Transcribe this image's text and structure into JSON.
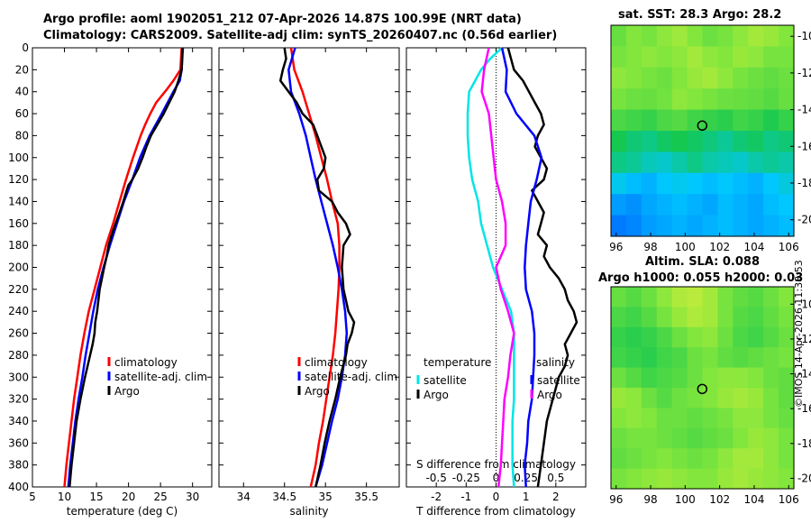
{
  "title_line1": "Argo profile: aoml 1902051_212 07-Apr-2026 14.87S 100.99E (NRT data)",
  "title_line2": "Climatology: CARS2009. Satellite-adj clim: synTS_20260407.nc (0.56d earlier)",
  "sst_title": "sat. SST: 28.3 Argo: 28.2",
  "sla_title1": "Altim. SLA: 0.088",
  "sla_title2": "Argo h1000: 0.055 h2000: 0.03",
  "copyright": "©IMOS 14-Apr-2026 11:38:53",
  "colors": {
    "climatology": "#ff0000",
    "satellite": "#0000ff",
    "argo": "#000000",
    "temp_diff": "#00e5e5",
    "sal_diff": "#ff00ff"
  },
  "chart_data": [
    {
      "type": "line",
      "name": "temperature",
      "xlabel": "temperature (deg C)",
      "ylabel": "",
      "xlim": [
        5,
        33
      ],
      "ylim": [
        400,
        0
      ],
      "xticks": [
        "5",
        "10",
        "15",
        "20",
        "25",
        "30"
      ],
      "yticks": [
        "0",
        "20",
        "40",
        "60",
        "80",
        "100",
        "120",
        "140",
        "160",
        "180",
        "200",
        "220",
        "240",
        "260",
        "280",
        "300",
        "320",
        "340",
        "360",
        "380",
        "400"
      ],
      "legend": [
        "climatology",
        "satellite-adj. clim",
        "Argo"
      ],
      "series": [
        {
          "name": "climatology",
          "color": "#ff0000",
          "depth": [
            0,
            20,
            30,
            40,
            50,
            60,
            70,
            80,
            100,
            120,
            140,
            160,
            180,
            200,
            220,
            240,
            260,
            280,
            300,
            320,
            340,
            360,
            380,
            400
          ],
          "values": [
            28.3,
            28.1,
            27.0,
            25.7,
            24.3,
            23.4,
            22.6,
            21.9,
            20.7,
            19.6,
            18.6,
            17.6,
            16.5,
            15.6,
            14.7,
            13.8,
            13.1,
            12.5,
            12.0,
            11.5,
            11.1,
            10.7,
            10.3,
            10.0
          ]
        },
        {
          "name": "satellite-adj. clim",
          "color": "#0000ff",
          "depth": [
            0,
            20,
            30,
            40,
            60,
            80,
            100,
            120,
            140,
            160,
            180,
            200,
            220,
            240,
            260,
            280,
            300,
            320,
            340,
            360,
            380,
            400
          ],
          "values": [
            28.5,
            28.3,
            28.0,
            27.0,
            25.2,
            23.3,
            21.8,
            20.6,
            19.3,
            18.2,
            17.1,
            16.1,
            15.2,
            14.5,
            13.9,
            13.3,
            12.8,
            12.2,
            11.7,
            11.3,
            10.9,
            10.6
          ]
        },
        {
          "name": "Argo",
          "color": "#000000",
          "depth": [
            0,
            20,
            30,
            40,
            60,
            80,
            90,
            100,
            110,
            120,
            125,
            130,
            140,
            150,
            160,
            170,
            180,
            190,
            200,
            220,
            240,
            250,
            260,
            270,
            280,
            300,
            320,
            340,
            360,
            380,
            400
          ],
          "values": [
            28.4,
            28.3,
            27.8,
            27.2,
            25.5,
            23.5,
            22.8,
            22.2,
            21.5,
            20.6,
            20.0,
            19.7,
            19.2,
            18.6,
            18.0,
            17.4,
            16.9,
            16.6,
            16.2,
            15.5,
            15.1,
            14.8,
            14.7,
            14.4,
            14.0,
            13.2,
            12.5,
            11.9,
            11.5,
            11.1,
            10.8
          ]
        }
      ]
    },
    {
      "type": "line",
      "name": "salinity",
      "xlabel": "salinity",
      "xlim": [
        33.7,
        35.9
      ],
      "ylim": [
        400,
        0
      ],
      "xticks": [
        "34",
        "34.5",
        "35",
        "35.5"
      ],
      "legend": [
        "climatology",
        "satellite-adj. clim",
        "Argo"
      ],
      "series": [
        {
          "name": "climatology",
          "color": "#ff0000",
          "depth": [
            0,
            20,
            40,
            60,
            80,
            100,
            120,
            140,
            160,
            180,
            200,
            220,
            240,
            260,
            280,
            300,
            320,
            340,
            360,
            380,
            400
          ],
          "values": [
            34.58,
            34.62,
            34.72,
            34.8,
            34.88,
            34.95,
            35.02,
            35.08,
            35.15,
            35.17,
            35.17,
            35.16,
            35.14,
            35.12,
            35.09,
            35.05,
            35.01,
            34.97,
            34.92,
            34.88,
            34.82
          ]
        },
        {
          "name": "satellite-adj. clim",
          "color": "#0000ff",
          "depth": [
            0,
            20,
            40,
            60,
            80,
            100,
            120,
            140,
            160,
            180,
            200,
            220,
            240,
            260,
            280,
            300,
            320,
            340,
            360,
            380,
            400
          ],
          "values": [
            34.63,
            34.55,
            34.58,
            34.68,
            34.76,
            34.82,
            34.88,
            34.95,
            35.02,
            35.09,
            35.15,
            35.2,
            35.24,
            35.26,
            35.24,
            35.2,
            35.15,
            35.08,
            35.02,
            34.96,
            34.88
          ]
        },
        {
          "name": "Argo",
          "color": "#000000",
          "depth": [
            0,
            10,
            20,
            30,
            40,
            50,
            60,
            70,
            80,
            90,
            100,
            110,
            120,
            130,
            140,
            150,
            160,
            170,
            180,
            200,
            220,
            240,
            250,
            260,
            270,
            280,
            300,
            320,
            340,
            360,
            380,
            400
          ],
          "values": [
            34.5,
            34.52,
            34.48,
            34.45,
            34.55,
            34.65,
            34.72,
            34.85,
            34.9,
            34.95,
            35.0,
            34.98,
            34.9,
            34.92,
            35.08,
            35.15,
            35.25,
            35.3,
            35.22,
            35.2,
            35.22,
            35.28,
            35.35,
            35.32,
            35.27,
            35.25,
            35.18,
            35.12,
            35.05,
            34.99,
            34.94,
            34.88
          ]
        }
      ]
    },
    {
      "type": "line",
      "name": "difference from climatology",
      "xlabel": "T difference from climatology",
      "xlabel_top": "S difference from climatology",
      "xlim": [
        -3,
        3
      ],
      "ylim": [
        400,
        0
      ],
      "xticks": [
        "-2",
        "-1",
        "0",
        "1",
        "2"
      ],
      "xticks_top": [
        "-0.5",
        "-0.25",
        "0",
        "0.25",
        "0.5"
      ],
      "legend_left_title": "temperature",
      "legend_right_title": "salinity",
      "legend": [
        "satellite",
        "Argo"
      ],
      "series": [
        {
          "name": "temperature satellite",
          "color": "#00e5e5",
          "depth": [
            0,
            10,
            20,
            30,
            40,
            60,
            80,
            100,
            120,
            140,
            160,
            180,
            200,
            220,
            240,
            260,
            280,
            300,
            320,
            340,
            360,
            380,
            400
          ],
          "values": [
            0.2,
            -0.2,
            -0.5,
            -0.7,
            -0.9,
            -0.95,
            -0.95,
            -0.9,
            -0.8,
            -0.6,
            -0.5,
            -0.3,
            -0.1,
            0.2,
            0.5,
            0.6,
            0.6,
            0.6,
            0.6,
            0.55,
            0.55,
            0.55,
            0.6
          ]
        },
        {
          "name": "temperature Argo",
          "color": "#000000",
          "depth": [
            0,
            10,
            20,
            30,
            40,
            50,
            60,
            70,
            80,
            90,
            100,
            110,
            120,
            130,
            140,
            150,
            160,
            170,
            180,
            190,
            200,
            210,
            220,
            230,
            240,
            250,
            260,
            270,
            280,
            290,
            300,
            320,
            340,
            360,
            380,
            400
          ],
          "values": [
            0.4,
            0.5,
            0.6,
            0.9,
            1.1,
            1.3,
            1.5,
            1.6,
            1.4,
            1.3,
            1.5,
            1.7,
            1.6,
            1.2,
            1.4,
            1.6,
            1.5,
            1.4,
            1.7,
            1.6,
            1.8,
            2.1,
            2.3,
            2.4,
            2.6,
            2.7,
            2.5,
            2.3,
            2.4,
            2.3,
            2.1,
            1.9,
            1.7,
            1.6,
            1.5,
            1.4
          ]
        },
        {
          "name": "salinity satellite",
          "color": "#0000ff",
          "depth": [
            0,
            20,
            40,
            60,
            80,
            100,
            120,
            140,
            160,
            180,
            200,
            220,
            240,
            260,
            280,
            300,
            320,
            340,
            360,
            380,
            400
          ],
          "values": [
            0.05,
            0.09,
            0.08,
            0.17,
            0.32,
            0.38,
            0.34,
            0.29,
            0.27,
            0.25,
            0.24,
            0.25,
            0.3,
            0.32,
            0.32,
            0.31,
            0.3,
            0.27,
            0.26,
            0.24,
            0.25
          ]
        },
        {
          "name": "salinity Argo",
          "color": "#ff00ff",
          "depth": [
            0,
            20,
            40,
            60,
            80,
            100,
            120,
            140,
            160,
            180,
            200,
            220,
            240,
            260,
            280,
            300,
            320,
            340,
            360,
            380,
            400
          ],
          "values": [
            -0.06,
            -0.1,
            -0.12,
            -0.06,
            -0.04,
            -0.02,
            0.0,
            0.05,
            0.08,
            0.08,
            0.0,
            0.04,
            0.1,
            0.15,
            0.12,
            0.1,
            0.07,
            0.06,
            0.05,
            0.04,
            0.02
          ]
        }
      ]
    },
    {
      "type": "heatmap",
      "name": "sat. SST map",
      "title": "sat. SST: 28.3 Argo: 28.2",
      "xlim": [
        95.7,
        106.3
      ],
      "ylim": [
        -20.9,
        -9.4
      ],
      "xticks": [
        "96",
        "98",
        "100",
        "102",
        "104",
        "106"
      ],
      "yticks": [
        "-10",
        "-12",
        "-14",
        "-16",
        "-18",
        "-20"
      ],
      "argo_marker": [
        100.99,
        -14.87
      ],
      "grid": [
        [
          0.55,
          0.6,
          0.58,
          0.62,
          0.65,
          0.6,
          0.56,
          0.58,
          0.62,
          0.66,
          0.64,
          0.6
        ],
        [
          0.58,
          0.6,
          0.62,
          0.6,
          0.62,
          0.66,
          0.62,
          0.6,
          0.64,
          0.62,
          0.58,
          0.58
        ],
        [
          0.62,
          0.6,
          0.58,
          0.56,
          0.6,
          0.64,
          0.66,
          0.62,
          0.58,
          0.56,
          0.54,
          0.56
        ],
        [
          0.58,
          0.56,
          0.55,
          0.57,
          0.62,
          0.6,
          0.58,
          0.56,
          0.55,
          0.54,
          0.52,
          0.55
        ],
        [
          0.5,
          0.48,
          0.46,
          0.5,
          0.52,
          0.48,
          0.46,
          0.44,
          0.48,
          0.46,
          0.42,
          0.46
        ],
        [
          0.4,
          0.36,
          0.34,
          0.38,
          0.4,
          0.38,
          0.35,
          0.32,
          0.36,
          0.38,
          0.34,
          0.36
        ],
        [
          0.34,
          0.32,
          0.28,
          0.26,
          0.3,
          0.34,
          0.3,
          0.28,
          0.26,
          0.3,
          0.32,
          0.3
        ],
        [
          0.22,
          0.18,
          0.16,
          0.2,
          0.22,
          0.2,
          0.18,
          0.2,
          0.18,
          0.16,
          0.2,
          0.24
        ],
        [
          0.12,
          0.1,
          0.14,
          0.16,
          0.18,
          0.16,
          0.14,
          0.18,
          0.16,
          0.14,
          0.18,
          0.2
        ],
        [
          0.06,
          0.08,
          0.12,
          0.14,
          0.16,
          0.14,
          0.16,
          0.18,
          0.16,
          0.14,
          0.16,
          0.18
        ]
      ]
    },
    {
      "type": "heatmap",
      "name": "Altim. SLA map",
      "title": "Altim. SLA: 0.088",
      "subtitle": "Argo h1000: 0.055 h2000: 0.03",
      "xlim": [
        95.7,
        106.3
      ],
      "ylim": [
        -20.6,
        -9.0
      ],
      "xticks": [
        "96",
        "98",
        "100",
        "102",
        "104",
        "106"
      ],
      "yticks": [
        "-10",
        "-12",
        "-14",
        "-16",
        "-18",
        "-20"
      ],
      "argo_marker": [
        100.99,
        -14.87
      ],
      "grid": [
        [
          0.55,
          0.52,
          0.56,
          0.62,
          0.68,
          0.7,
          0.66,
          0.58,
          0.54,
          0.52,
          0.56,
          0.6
        ],
        [
          0.5,
          0.48,
          0.52,
          0.58,
          0.64,
          0.68,
          0.66,
          0.58,
          0.52,
          0.5,
          0.54,
          0.58
        ],
        [
          0.46,
          0.44,
          0.46,
          0.5,
          0.56,
          0.6,
          0.62,
          0.56,
          0.5,
          0.48,
          0.52,
          0.56
        ],
        [
          0.48,
          0.46,
          0.44,
          0.48,
          0.5,
          0.56,
          0.58,
          0.54,
          0.52,
          0.54,
          0.56,
          0.58
        ],
        [
          0.56,
          0.52,
          0.48,
          0.5,
          0.52,
          0.56,
          0.6,
          0.62,
          0.62,
          0.6,
          0.56,
          0.54
        ],
        [
          0.64,
          0.62,
          0.56,
          0.52,
          0.56,
          0.58,
          0.6,
          0.64,
          0.66,
          0.64,
          0.58,
          0.54
        ],
        [
          0.6,
          0.62,
          0.6,
          0.56,
          0.56,
          0.54,
          0.56,
          0.58,
          0.62,
          0.62,
          0.58,
          0.55
        ],
        [
          0.56,
          0.58,
          0.58,
          0.56,
          0.54,
          0.52,
          0.54,
          0.56,
          0.6,
          0.64,
          0.62,
          0.58
        ],
        [
          0.54,
          0.56,
          0.58,
          0.6,
          0.58,
          0.56,
          0.58,
          0.62,
          0.66,
          0.66,
          0.62,
          0.58
        ],
        [
          0.58,
          0.6,
          0.62,
          0.64,
          0.62,
          0.6,
          0.6,
          0.64,
          0.66,
          0.64,
          0.62,
          0.6
        ]
      ]
    }
  ]
}
